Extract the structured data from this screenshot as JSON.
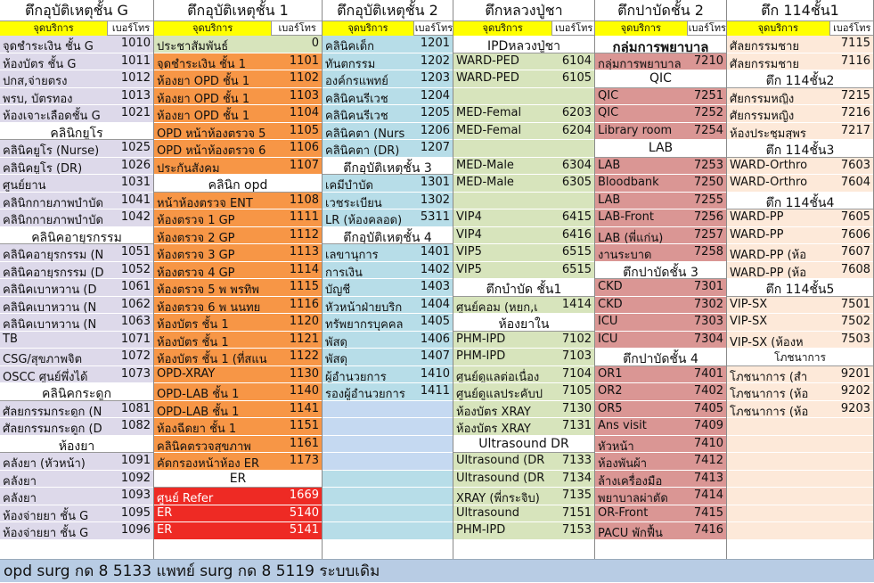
{
  "colors": {
    "purple": "#ddd9ea",
    "orange": "#f79646",
    "blue": "#b7dde8",
    "bluedark": "#c5d9f1",
    "green": "#d7e4bc",
    "red": "#da9694",
    "peach": "#fde9d9",
    "white": "#ffffff",
    "brightred": "#ee2a24",
    "yellow": "#ffff00"
  },
  "sub_labels": {
    "service": "จุดบริการ",
    "phone": "เบอร์โทร"
  },
  "columns": [
    {
      "title": "ตึกอุบัติเหตุชั้น G",
      "rows": [
        {
          "label": "จุดชำระเงิน ชั้น G",
          "num": "1010",
          "c": "purple"
        },
        {
          "label": "ห้องบัตร ชั้น G",
          "num": "1011",
          "c": "purple"
        },
        {
          "label": "ปกส,จ่ายตรง",
          "num": "1012",
          "c": "purple"
        },
        {
          "label": "พรบ, บัตรทอง",
          "num": "1013",
          "c": "purple"
        },
        {
          "label": "ห้องเจาะเลือดชั้น G",
          "num": "1021",
          "c": "purple"
        },
        {
          "label": "คลินิกยูโร",
          "num": "",
          "c": "white",
          "h": true
        },
        {
          "label": "คลินิคยูโร (Nurse)",
          "num": "1025",
          "c": "purple"
        },
        {
          "label": "คลินิคยูโร (DR)",
          "num": "1026",
          "c": "purple"
        },
        {
          "label": "ศูนย์ยาน",
          "num": "1031",
          "c": "purple"
        },
        {
          "label": "คลินิกกายภาพบำบัด",
          "num": "1041",
          "c": "purple"
        },
        {
          "label": "คลินิกกายภาพบำบัด",
          "num": "1042",
          "c": "purple"
        },
        {
          "label": "คลินิคอายุรกรรม",
          "num": "",
          "c": "white",
          "h": true
        },
        {
          "label": "คลินิคอายุรกรรม (N",
          "num": "1051",
          "c": "purple"
        },
        {
          "label": "คลินิคอายุรกรรม (D",
          "num": "1052",
          "c": "purple"
        },
        {
          "label": "คลินิคเบาหวาน (D",
          "num": "1061",
          "c": "purple"
        },
        {
          "label": "คลินิคเบาหวาน (N",
          "num": "1062",
          "c": "purple"
        },
        {
          "label": "คลินิคเบาหวาน (N",
          "num": "1063",
          "c": "purple"
        },
        {
          "label": "TB",
          "num": "1071",
          "c": "purple"
        },
        {
          "label": "CSG/สุขภาพจิต",
          "num": "1072",
          "c": "purple"
        },
        {
          "label": "OSCC ศูนย์พึ่งได้",
          "num": "1073",
          "c": "purple"
        },
        {
          "label": "คลินิคกระดูก",
          "num": "",
          "c": "white",
          "h": true
        },
        {
          "label": "ศัลยกรรมกระดูก (N",
          "num": "1081",
          "c": "purple"
        },
        {
          "label": "ศัลยกรรมกระดูก (D",
          "num": "1082",
          "c": "purple"
        },
        {
          "label": "ห้องยา",
          "num": "",
          "c": "white",
          "h": true
        },
        {
          "label": "คลังยา (หัวหน้า)",
          "num": "1091",
          "c": "purple"
        },
        {
          "label": "คลังยา",
          "num": "1092",
          "c": "purple"
        },
        {
          "label": "คลังยา",
          "num": "1093",
          "c": "purple"
        },
        {
          "label": "ห้องจ่ายยา ชั้น G",
          "num": "1095",
          "c": "purple"
        },
        {
          "label": "ห้องจ่ายยา ชั้น G",
          "num": "1096",
          "c": "purple"
        }
      ]
    },
    {
      "title": "ตึกอุบัติเหตุชั้น 1",
      "rows": [
        {
          "label": "ประชาสัมพันธ์",
          "num": "0",
          "c": "green"
        },
        {
          "label": "จุดชำระเงิน ชั้น 1",
          "num": "1101",
          "c": "orange"
        },
        {
          "label": "ห้องยา OPD ชั้น 1",
          "num": "1102",
          "c": "orange"
        },
        {
          "label": "ห้องยา OPD ชั้น 1",
          "num": "1103",
          "c": "orange"
        },
        {
          "label": "ห้องยา OPD ชั้น 1",
          "num": "1104",
          "c": "orange"
        },
        {
          "label": "OPD หน้าห้องตรวจ 5",
          "num": "1105",
          "c": "orange"
        },
        {
          "label": "OPD หน้าห้องตรวจ 6",
          "num": "1106",
          "c": "orange"
        },
        {
          "label": "ประกันสังคม",
          "num": "1107",
          "c": "orange"
        },
        {
          "label": "คลินิก opd",
          "num": "",
          "c": "white",
          "h": true
        },
        {
          "label": "หน้าห้องตรวจ ENT",
          "num": "1108",
          "c": "orange"
        },
        {
          "label": "ห้องตรวจ 1 GP",
          "num": "1111",
          "c": "orange"
        },
        {
          "label": "ห้องตรวจ 2 GP",
          "num": "1112",
          "c": "orange"
        },
        {
          "label": "ห้องตรวจ 3 GP",
          "num": "1113",
          "c": "orange"
        },
        {
          "label": "ห้องตรวจ 4 GP",
          "num": "1114",
          "c": "orange"
        },
        {
          "label": "ห้องตรวจ 5 พ พรทิพ",
          "num": "1115",
          "c": "orange"
        },
        {
          "label": "ห้องตรวจ 6 พ นนทย",
          "num": "1116",
          "c": "orange"
        },
        {
          "label": "ห้องบัตร ชั้น 1",
          "num": "1120",
          "c": "orange"
        },
        {
          "label": "ห้องบัตร ชั้น 1",
          "num": "1121",
          "c": "orange"
        },
        {
          "label": "ห้องบัตร ชั้น 1 (ที่สแน",
          "num": "1122",
          "c": "orange"
        },
        {
          "label": "OPD-XRAY",
          "num": "1130",
          "c": "orange"
        },
        {
          "label": "OPD-LAB ชั้น 1",
          "num": "1140",
          "c": "orange"
        },
        {
          "label": "OPD-LAB ชั้น 1",
          "num": "1141",
          "c": "orange"
        },
        {
          "label": "ห้องฉีดยา ชั้น 1",
          "num": "1151",
          "c": "orange"
        },
        {
          "label": "คลินิคตรวจสุขภาพ",
          "num": "1161",
          "c": "orange"
        },
        {
          "label": "คัดกรองหน้าห้อง ER",
          "num": "1173",
          "c": "orange"
        },
        {
          "label": "ER",
          "num": "",
          "c": "white",
          "h": true
        },
        {
          "label": "ศูนย์ Refer",
          "num": "1669",
          "c": "brightred"
        },
        {
          "label": "ER",
          "num": "5140",
          "c": "brightred"
        },
        {
          "label": "ER",
          "num": "5141",
          "c": "brightred"
        }
      ]
    },
    {
      "title": "ตึกอุบัติเหตุชั้น 2",
      "rows": [
        {
          "label": "คลินิคเด็ก",
          "num": "1201",
          "c": "blue"
        },
        {
          "label": "ทันตกรรม",
          "num": "1202",
          "c": "blue"
        },
        {
          "label": "องค์กรแพทย์",
          "num": "1203",
          "c": "blue"
        },
        {
          "label": "คลินิคนรีเวช",
          "num": "1204",
          "c": "blue"
        },
        {
          "label": "คลินิคนรีเวช",
          "num": "1205",
          "c": "blue"
        },
        {
          "label": "คลินิคตา (Nurs",
          "num": "1206",
          "c": "blue"
        },
        {
          "label": "คลินิคตา (DR)",
          "num": "1207",
          "c": "blue"
        },
        {
          "label": "ตึกอุบัติเหตุชั้น 3",
          "num": "",
          "c": "white",
          "h": true
        },
        {
          "label": "เคมีบำบัด",
          "num": "1301",
          "c": "blue"
        },
        {
          "label": "เวชระเบียน",
          "num": "1302",
          "c": "blue"
        },
        {
          "label": "LR (ห้องคลอด)",
          "num": "5311",
          "c": "blue"
        },
        {
          "label": "ตึกอุบัติเหตุชั้น 4",
          "num": "",
          "c": "white",
          "h": true
        },
        {
          "label": "เลขานุการ",
          "num": "1401",
          "c": "blue"
        },
        {
          "label": "การเงิน",
          "num": "1402",
          "c": "blue"
        },
        {
          "label": "บัญชี",
          "num": "1403",
          "c": "blue"
        },
        {
          "label": "หัวหน้าฝ่ายบริก",
          "num": "1404",
          "c": "blue"
        },
        {
          "label": "ทรัพยากรบุคคล",
          "num": "1405",
          "c": "blue"
        },
        {
          "label": "พัสดุ",
          "num": "1406",
          "c": "blue"
        },
        {
          "label": "พัสดุ",
          "num": "1407",
          "c": "blue"
        },
        {
          "label": "ผู้อำนวยการ",
          "num": "1410",
          "c": "blue"
        },
        {
          "label": "รองผู้อำนวยการ",
          "num": "1411",
          "c": "blue"
        },
        {
          "label": "",
          "num": "",
          "c": "bluedark"
        },
        {
          "label": "",
          "num": "",
          "c": "bluedark"
        },
        {
          "label": "",
          "num": "",
          "c": "bluedark"
        },
        {
          "label": "",
          "num": "",
          "c": "bluedark"
        },
        {
          "label": "",
          "num": "",
          "c": "blue"
        },
        {
          "label": "",
          "num": "",
          "c": "blue"
        },
        {
          "label": "",
          "num": "",
          "c": "blue"
        },
        {
          "label": "",
          "num": "",
          "c": "blue"
        }
      ]
    },
    {
      "title": "ตึกหลวงปู่ชา",
      "rows": [
        {
          "label": "IPDหลวงปู่ชา",
          "num": "",
          "c": "white",
          "h": true
        },
        {
          "label": "WARD-PED",
          "num": "6104",
          "c": "green"
        },
        {
          "label": "WARD-PED",
          "num": "6105",
          "c": "green"
        },
        {
          "label": "",
          "num": "",
          "c": "green"
        },
        {
          "label": "MED-Femal",
          "num": "6203",
          "c": "green"
        },
        {
          "label": "MED-Femal",
          "num": "6204",
          "c": "green"
        },
        {
          "label": "",
          "num": "",
          "c": "green"
        },
        {
          "label": "MED-Male",
          "num": "6304",
          "c": "green"
        },
        {
          "label": "MED-Male",
          "num": "6305",
          "c": "green"
        },
        {
          "label": "",
          "num": "",
          "c": "green"
        },
        {
          "label": "VIP4",
          "num": "6415",
          "c": "green"
        },
        {
          "label": "VIP4",
          "num": "6416",
          "c": "green"
        },
        {
          "label": "VIP5",
          "num": "6515",
          "c": "green"
        },
        {
          "label": "VIP5",
          "num": "6515",
          "c": "green"
        },
        {
          "label": "ตึกบำบัด ชั้น1",
          "num": "",
          "c": "white",
          "h": true
        },
        {
          "label": "ศูนย์คอม (หยก,เ",
          "num": "1414",
          "c": "green"
        },
        {
          "label": "ห้องยาใน",
          "num": "",
          "c": "white",
          "h": true
        },
        {
          "label": "PHM-IPD",
          "num": "7102",
          "c": "green"
        },
        {
          "label": "PHM-IPD",
          "num": "7103",
          "c": "green"
        },
        {
          "label": "ศูนย์ดูแลต่อเนื่อง",
          "num": "7104",
          "c": "green"
        },
        {
          "label": "ศูนย์ดูแลประคับป",
          "num": "7105",
          "c": "green"
        },
        {
          "label": "ห้องบัตร XRAY",
          "num": "7130",
          "c": "green"
        },
        {
          "label": "ห้องบัตร XRAY",
          "num": "7131",
          "c": "green"
        },
        {
          "label": "Ultrasound DR",
          "num": "",
          "c": "white",
          "h": true
        },
        {
          "label": "Ultrasound (DR",
          "num": "7133",
          "c": "green"
        },
        {
          "label": "Ultrasound (DR",
          "num": "7134",
          "c": "green"
        },
        {
          "label": "XRAY (พี่กระจิบ)",
          "num": "7135",
          "c": "green"
        },
        {
          "label": "Ultrasound",
          "num": "7151",
          "c": "green"
        },
        {
          "label": "PHM-IPD",
          "num": "7153",
          "c": "green"
        }
      ]
    },
    {
      "title": "ตึกปาบัดชั้น 2",
      "rows": [
        {
          "label": "กลุ่มการพยาบาล",
          "num": "",
          "c": "white",
          "h": true,
          "big": true
        },
        {
          "label": "กลุ่มการพยาบาล",
          "num": "7210",
          "c": "red"
        },
        {
          "label": "QIC",
          "num": "",
          "c": "white",
          "h": true
        },
        {
          "label": "QIC",
          "num": "7251",
          "c": "red"
        },
        {
          "label": "QIC",
          "num": "7252",
          "c": "red"
        },
        {
          "label": "Library room",
          "num": "7254",
          "c": "red"
        },
        {
          "label": "LAB",
          "num": "",
          "c": "white",
          "h": true
        },
        {
          "label": "LAB",
          "num": "7253",
          "c": "red"
        },
        {
          "label": "Bloodbank",
          "num": "7250",
          "c": "red"
        },
        {
          "label": "LAB",
          "num": "7255",
          "c": "red"
        },
        {
          "label": "LAB-Front",
          "num": "7256",
          "c": "red"
        },
        {
          "label": "LAB (พี่แก่น)",
          "num": "7257",
          "c": "red"
        },
        {
          "label": "งานระบาด",
          "num": "7258",
          "c": "red"
        },
        {
          "label": "ตึกปาบัดชั้น 3",
          "num": "",
          "c": "white",
          "h": true
        },
        {
          "label": "CKD",
          "num": "7301",
          "c": "red"
        },
        {
          "label": "CKD",
          "num": "7302",
          "c": "red"
        },
        {
          "label": "ICU",
          "num": "7303",
          "c": "red"
        },
        {
          "label": "ICU",
          "num": "7304",
          "c": "red"
        },
        {
          "label": "ตึกปาบัดชั้น 4",
          "num": "",
          "c": "white",
          "h": true
        },
        {
          "label": "OR1",
          "num": "7401",
          "c": "red"
        },
        {
          "label": "OR2",
          "num": "7402",
          "c": "red"
        },
        {
          "label": "OR5",
          "num": "7405",
          "c": "red"
        },
        {
          "label": "Ans visit",
          "num": "7409",
          "c": "red"
        },
        {
          "label": "หัวหน้า",
          "num": "7410",
          "c": "red"
        },
        {
          "label": "ห้องพันผ้า",
          "num": "7412",
          "c": "red"
        },
        {
          "label": "ล้างเครื่องมือ",
          "num": "7413",
          "c": "red"
        },
        {
          "label": "พยาบาลผ่าตัด",
          "num": "7414",
          "c": "red"
        },
        {
          "label": "OR-Front",
          "num": "7415",
          "c": "red"
        },
        {
          "label": "PACU พักฟื้น",
          "num": "7416",
          "c": "red"
        }
      ]
    },
    {
      "title": "ตึก 114ชั้น1",
      "rows": [
        {
          "label": "ศัลยกรรมชาย",
          "num": "7115",
          "c": "peach"
        },
        {
          "label": "ศัลยกรรมชาย",
          "num": "7116",
          "c": "peach"
        },
        {
          "label": "ตึก 114ชั้น2",
          "num": "",
          "c": "white",
          "h": true
        },
        {
          "label": "ศัยกรรมหญิง",
          "num": "7215",
          "c": "peach"
        },
        {
          "label": "ศัยกรรมหญิง",
          "num": "7216",
          "c": "peach"
        },
        {
          "label": "ห้องประชุมสุพร",
          "num": "7217",
          "c": "peach"
        },
        {
          "label": "ตึก 114ชั้น3",
          "num": "",
          "c": "white",
          "h": true
        },
        {
          "label": "WARD-Orthro",
          "num": "7603",
          "c": "peach"
        },
        {
          "label": "WARD-Orthro",
          "num": "7604",
          "c": "peach"
        },
        {
          "label": "ตึก 114ชั้น4",
          "num": "",
          "c": "white",
          "h": true
        },
        {
          "label": "WARD-PP",
          "num": "7605",
          "c": "peach"
        },
        {
          "label": "WARD-PP",
          "num": "7606",
          "c": "peach"
        },
        {
          "label": "WARD-PP (ห้อ",
          "num": "7607",
          "c": "peach"
        },
        {
          "label": "WARD-PP (ห้อ",
          "num": "7608",
          "c": "peach"
        },
        {
          "label": "ตึก 114ชั้น5",
          "num": "",
          "c": "white",
          "h": true
        },
        {
          "label": "VIP-SX",
          "num": "7501",
          "c": "peach"
        },
        {
          "label": "VIP-SX",
          "num": "7502",
          "c": "peach"
        },
        {
          "label": "VIP-SX (ห้องห",
          "num": "7503",
          "c": "peach"
        },
        {
          "label": "โภชนาการ",
          "num": "",
          "c": "white",
          "h": true,
          "small": true
        },
        {
          "label": "โภชนาการ (สำ",
          "num": "9201",
          "c": "peach"
        },
        {
          "label": "โภชนาการ (ห้อ",
          "num": "9202",
          "c": "peach"
        },
        {
          "label": "โภชนาการ (ห้อ",
          "num": "9203",
          "c": "peach"
        },
        {
          "label": "",
          "num": "",
          "c": "peach"
        },
        {
          "label": "",
          "num": "",
          "c": "peach"
        },
        {
          "label": "",
          "num": "",
          "c": "peach"
        },
        {
          "label": "",
          "num": "",
          "c": "peach"
        },
        {
          "label": "",
          "num": "",
          "c": "peach"
        },
        {
          "label": "",
          "num": "",
          "c": "peach"
        },
        {
          "label": "",
          "num": "",
          "c": "peach"
        }
      ]
    }
  ],
  "footer": "opd  surg กด  8   5133   แพทย์ surg  กด 8  5119 ระบบเดิม"
}
